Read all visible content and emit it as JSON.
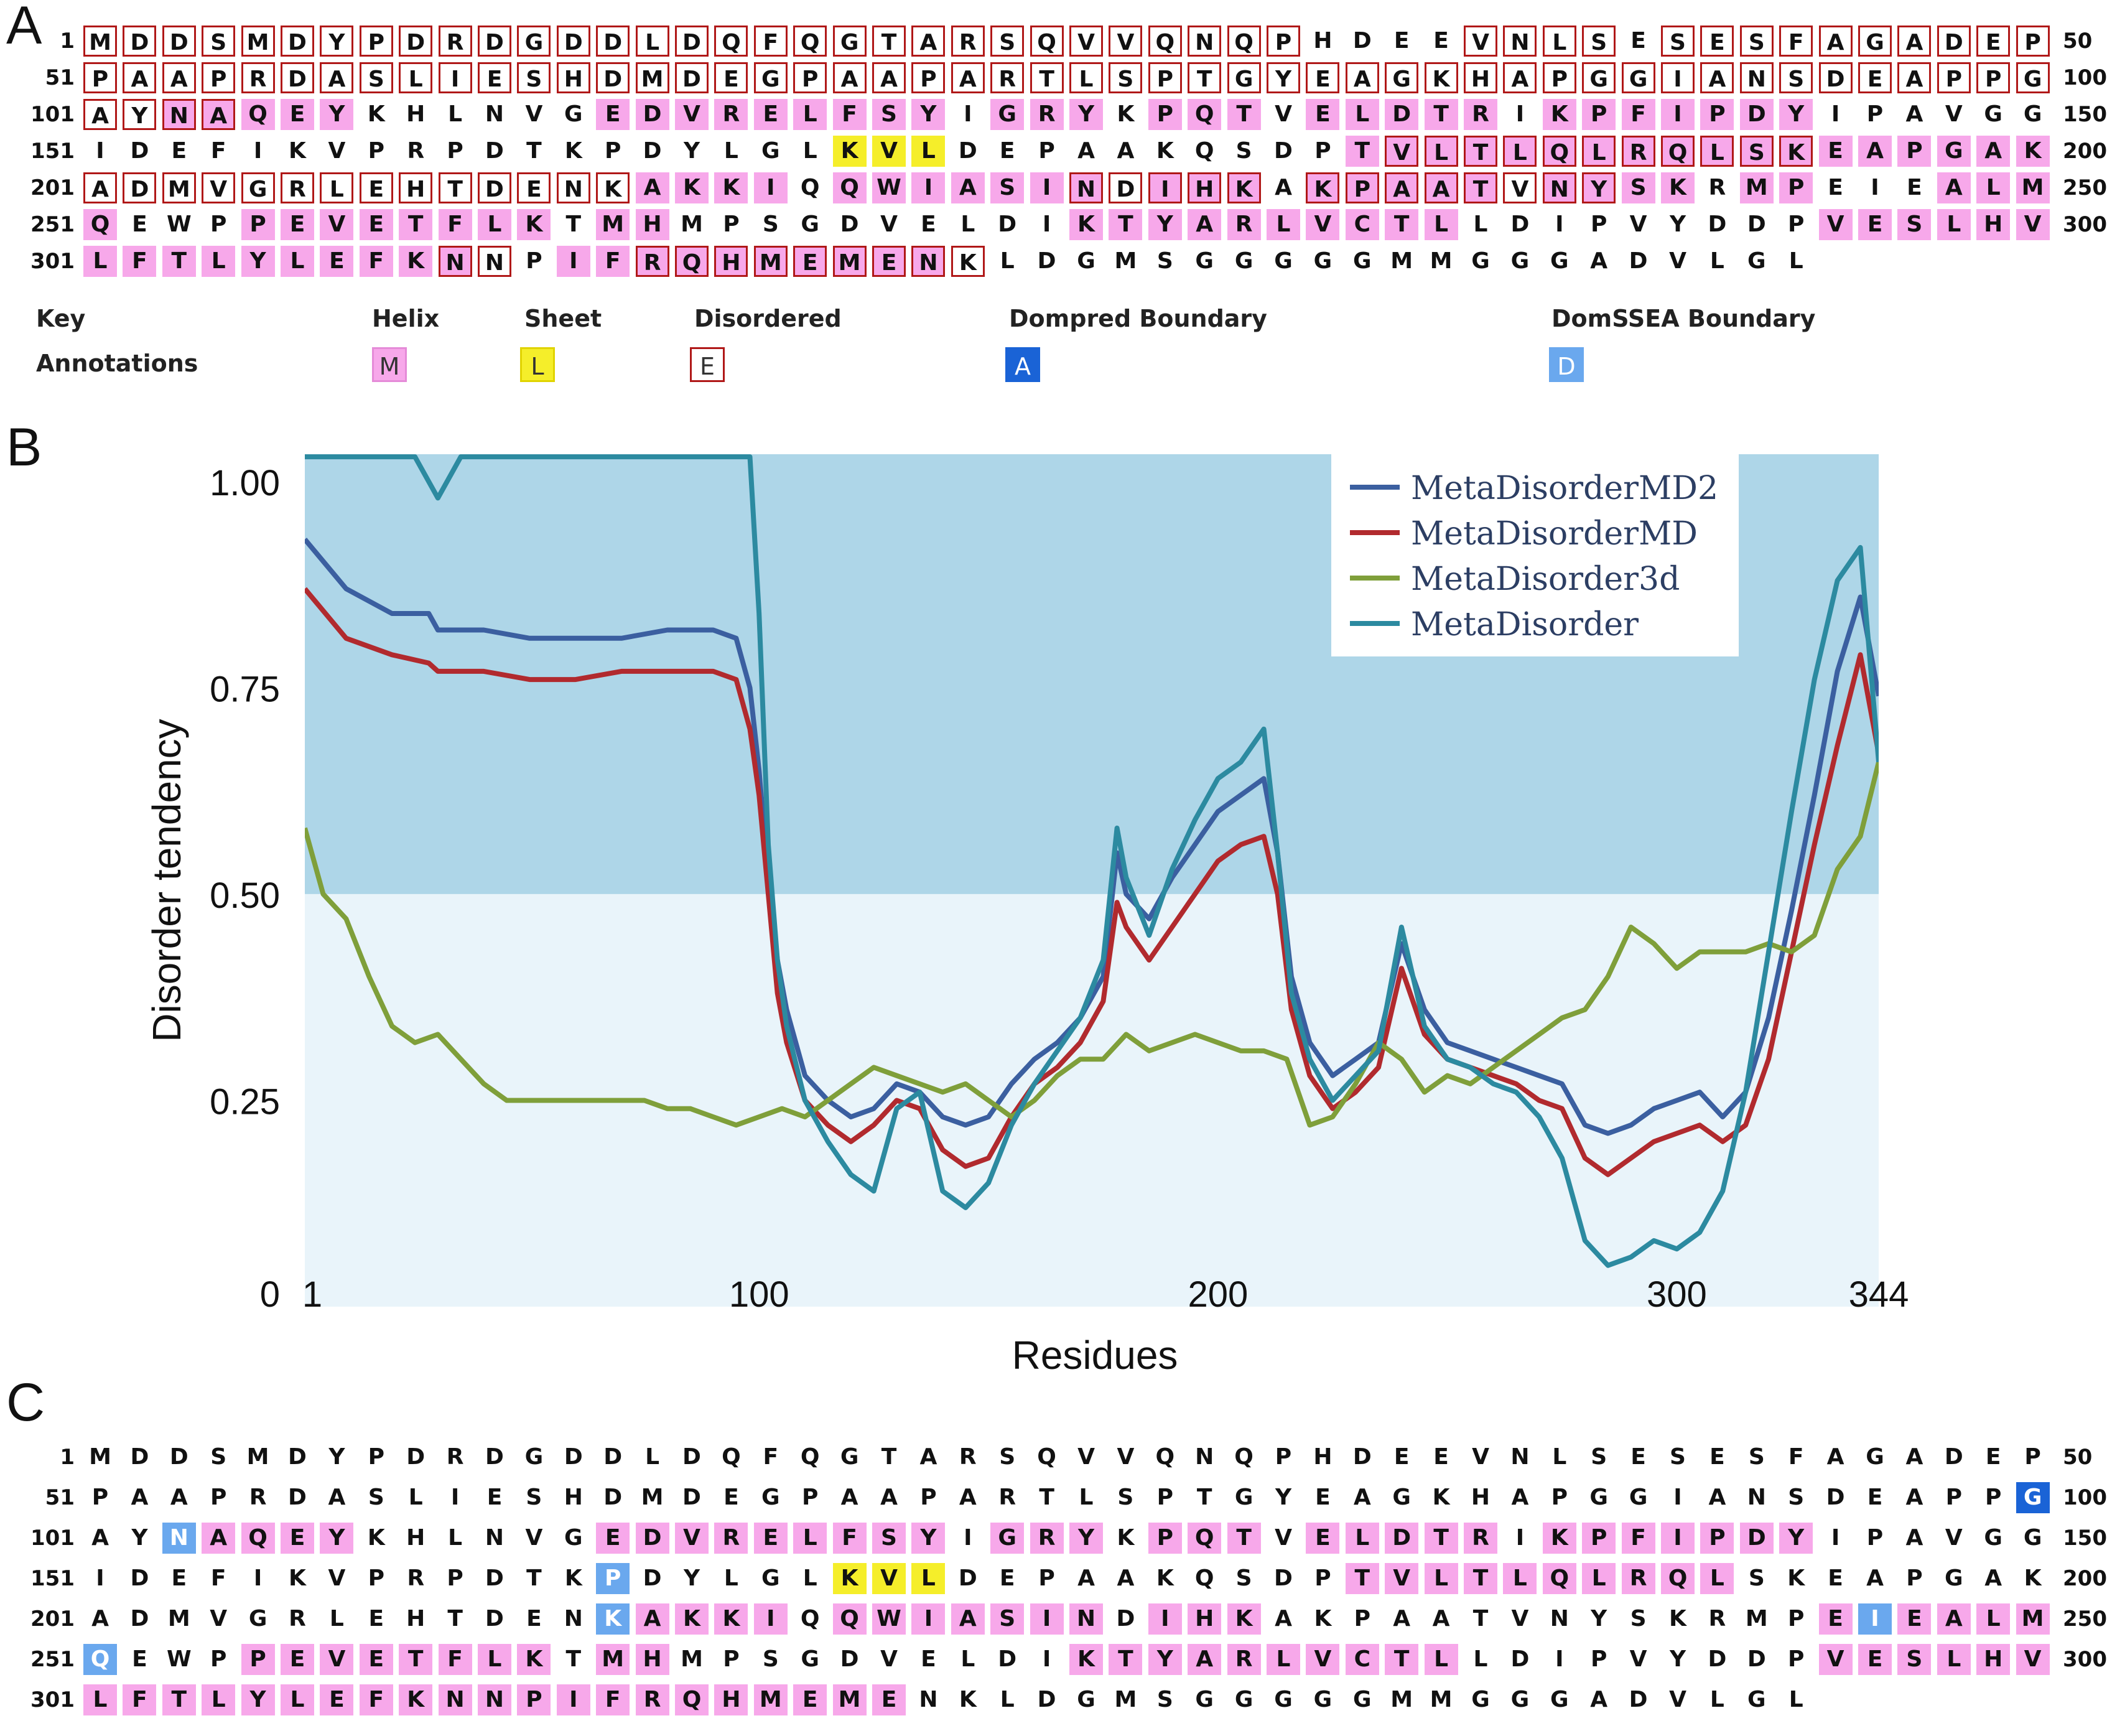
{
  "panel_labels": {
    "a": "A",
    "b": "B",
    "c": "C"
  },
  "sequence_rows": [
    {
      "start": "1",
      "end": "50",
      "seq": "MDDSMDYPDRDGDDLDQFQGTARSQVVQNQPHDEEVNLSESESFAGADEP"
    },
    {
      "start": "51",
      "end": "100",
      "seq": "PAAPRDASLIESHDMDEGPAAPARTLSPTGYEAGKHAPGGIANSDEAPPG"
    },
    {
      "start": "101",
      "end": "150",
      "seq": "AYNAQEYKHLNVGEDVRELFSYIGRYKPQTVELDTRIKPFIPDYIPAVGG"
    },
    {
      "start": "151",
      "end": "200",
      "seq": "IDEFIKVPRPDTKPDYLGLKVLDEPAAKQSDPTVLTLQLRQLSKEAPGAK"
    },
    {
      "start": "201",
      "end": "250",
      "seq": "ADMVGRLEHTDENKAKKIQQWIASINDIHKAKPAATVNYSKRMPEIEALM"
    },
    {
      "start": "251",
      "end": "300",
      "seq": "QEWPPEVETFLKTMHMPSGDVELDIKTYARLVCTLLDIPVYDDPVESLHV"
    },
    {
      "start": "301",
      "end": "",
      "seq": "LFTLYLEFKNNPIFRQHMEMENKLDGMSGGGGGMMGGGADVLGL"
    }
  ],
  "panel_a": {
    "helix": [
      "4",
      "15",
      "16",
      "17",
      "18",
      "20",
      "21",
      "22",
      "23",
      "25",
      "26",
      "27",
      "29",
      "31",
      "32",
      "33",
      "34",
      "35",
      "37",
      "38",
      "39",
      "40",
      "41",
      "42",
      "43",
      "44",
      "45",
      "46",
      "47",
      "48",
      "49",
      "50",
      "51",
      "52",
      "53",
      "54",
      "55",
      "56",
      "57",
      "58",
      "59",
      "60",
      "61",
      "62",
      "63",
      "64",
      "65",
      "66",
      "67",
      "68",
      "69",
      "70",
      "71",
      "72",
      "73",
      "74",
      "75",
      "76",
      "77",
      "78",
      "79",
      "80",
      "81",
      "82",
      "83",
      "84",
      "85",
      "86",
      "87",
      "88",
      "89",
      "90",
      "91",
      "92",
      "93",
      "94",
      "95",
      "96",
      "97",
      "98",
      "99",
      "100",
      "101",
      "102",
      "103",
      "104",
      "105",
      "106",
      "107",
      "114",
      "115",
      "116",
      "117",
      "118",
      "119",
      "120",
      "121",
      "122",
      "123",
      "124",
      "125",
      "126",
      "127",
      "128",
      "129",
      "130",
      "131",
      "132",
      "133",
      "134",
      "135",
      "136",
      "137",
      "138",
      "139",
      "140",
      "141",
      "142",
      "143",
      "144",
      "145",
      "146",
      "147",
      "148",
      "149",
      "150"
    ],
    "note": ""
  },
  "key": {
    "key_label": "Key",
    "annotations_label": "Annotations",
    "items": [
      {
        "title": "Helix",
        "glyph": "M",
        "bg": "#f7a8ea",
        "fg": "#333333",
        "border": "#e58bd8"
      },
      {
        "title": "Sheet",
        "glyph": "L",
        "bg": "#f5ee2a",
        "fg": "#333333",
        "border": "#e0d300"
      },
      {
        "title": "Disordered",
        "glyph": "E",
        "bg": "#ffffff",
        "fg": "#333333",
        "border": "#b01818"
      },
      {
        "title": "Dompred Boundary",
        "glyph": "A",
        "bg": "#1a63d6",
        "fg": "#ffffff",
        "border": "#1a63d6"
      },
      {
        "title": "DomSSEA Boundary",
        "glyph": "D",
        "bg": "#6aa8ee",
        "fg": "#ffffff",
        "border": "#6aa8ee"
      }
    ]
  },
  "chart_data": {
    "type": "line",
    "title": "",
    "xlabel": "Residues",
    "ylabel": "Disorder tendency",
    "xlim": [
      1,
      344
    ],
    "ylim": [
      0,
      1.03
    ],
    "x_ticks": [
      "1",
      "100",
      "200",
      "300",
      "344"
    ],
    "y_ticks": [
      "0",
      "0.25",
      "0.50",
      "0.75",
      "1.00"
    ],
    "threshold": 0.5,
    "background_upper": "#aed6e8",
    "background_lower": "#e9f4fa",
    "legend_position": "top-right",
    "series": [
      {
        "name": "MetaDisorderMD2",
        "color": "#3b5fa0",
        "x": [
          1,
          10,
          20,
          28,
          30,
          40,
          50,
          60,
          70,
          80,
          90,
          95,
          98,
          100,
          102,
          104,
          106,
          110,
          115,
          120,
          125,
          130,
          135,
          140,
          145,
          150,
          155,
          160,
          165,
          170,
          175,
          178,
          180,
          185,
          190,
          195,
          200,
          205,
          210,
          213,
          216,
          220,
          225,
          230,
          235,
          240,
          245,
          250,
          255,
          260,
          265,
          270,
          275,
          280,
          285,
          290,
          295,
          300,
          305,
          310,
          315,
          320,
          325,
          330,
          335,
          340,
          344
        ],
        "y": [
          0.93,
          0.87,
          0.84,
          0.84,
          0.82,
          0.82,
          0.81,
          0.81,
          0.81,
          0.82,
          0.82,
          0.81,
          0.75,
          0.65,
          0.52,
          0.42,
          0.36,
          0.28,
          0.25,
          0.23,
          0.24,
          0.27,
          0.26,
          0.23,
          0.22,
          0.23,
          0.27,
          0.3,
          0.32,
          0.35,
          0.4,
          0.55,
          0.5,
          0.47,
          0.52,
          0.56,
          0.6,
          0.62,
          0.64,
          0.55,
          0.4,
          0.32,
          0.28,
          0.3,
          0.32,
          0.44,
          0.36,
          0.32,
          0.31,
          0.3,
          0.29,
          0.28,
          0.27,
          0.22,
          0.21,
          0.22,
          0.24,
          0.25,
          0.26,
          0.23,
          0.26,
          0.35,
          0.48,
          0.62,
          0.77,
          0.86,
          0.74
        ]
      },
      {
        "name": "MetaDisorderMD",
        "color": "#b12a2e",
        "x": [
          1,
          10,
          20,
          28,
          30,
          40,
          50,
          60,
          70,
          80,
          90,
          95,
          98,
          100,
          102,
          104,
          106,
          110,
          115,
          120,
          125,
          130,
          135,
          140,
          145,
          150,
          155,
          160,
          165,
          170,
          175,
          178,
          180,
          185,
          190,
          195,
          200,
          205,
          210,
          213,
          216,
          220,
          225,
          230,
          235,
          240,
          245,
          250,
          255,
          260,
          265,
          270,
          275,
          280,
          285,
          290,
          295,
          300,
          305,
          310,
          315,
          320,
          325,
          330,
          335,
          340,
          344
        ],
        "y": [
          0.87,
          0.81,
          0.79,
          0.78,
          0.77,
          0.77,
          0.76,
          0.76,
          0.77,
          0.77,
          0.77,
          0.76,
          0.7,
          0.62,
          0.5,
          0.38,
          0.32,
          0.25,
          0.22,
          0.2,
          0.22,
          0.25,
          0.24,
          0.19,
          0.17,
          0.18,
          0.23,
          0.27,
          0.29,
          0.32,
          0.37,
          0.49,
          0.46,
          0.42,
          0.46,
          0.5,
          0.54,
          0.56,
          0.57,
          0.5,
          0.36,
          0.28,
          0.24,
          0.26,
          0.29,
          0.41,
          0.33,
          0.3,
          0.29,
          0.28,
          0.27,
          0.25,
          0.24,
          0.18,
          0.16,
          0.18,
          0.2,
          0.21,
          0.22,
          0.2,
          0.22,
          0.3,
          0.43,
          0.56,
          0.68,
          0.79,
          0.67
        ]
      },
      {
        "name": "MetaDisorder3d",
        "color": "#7f9f3a",
        "x": [
          1,
          5,
          10,
          15,
          20,
          25,
          30,
          35,
          40,
          45,
          50,
          55,
          60,
          65,
          70,
          75,
          80,
          85,
          90,
          95,
          100,
          105,
          110,
          115,
          120,
          125,
          130,
          135,
          140,
          145,
          150,
          155,
          160,
          165,
          170,
          175,
          180,
          185,
          190,
          195,
          200,
          205,
          210,
          215,
          220,
          225,
          230,
          235,
          240,
          245,
          250,
          255,
          260,
          265,
          270,
          275,
          280,
          285,
          290,
          295,
          300,
          305,
          310,
          315,
          320,
          325,
          330,
          335,
          340,
          344
        ],
        "y": [
          0.58,
          0.5,
          0.47,
          0.4,
          0.34,
          0.32,
          0.33,
          0.3,
          0.27,
          0.25,
          0.25,
          0.25,
          0.25,
          0.25,
          0.25,
          0.25,
          0.24,
          0.24,
          0.23,
          0.22,
          0.23,
          0.24,
          0.23,
          0.25,
          0.27,
          0.29,
          0.28,
          0.27,
          0.26,
          0.27,
          0.25,
          0.23,
          0.25,
          0.28,
          0.3,
          0.3,
          0.33,
          0.31,
          0.32,
          0.33,
          0.32,
          0.31,
          0.31,
          0.3,
          0.22,
          0.23,
          0.27,
          0.32,
          0.3,
          0.26,
          0.28,
          0.27,
          0.29,
          0.31,
          0.33,
          0.35,
          0.36,
          0.4,
          0.46,
          0.44,
          0.41,
          0.43,
          0.43,
          0.43,
          0.44,
          0.43,
          0.45,
          0.53,
          0.57,
          0.66
        ]
      },
      {
        "name": "MetaDisorder",
        "color": "#2c8aa0",
        "x": [
          1,
          5,
          10,
          15,
          20,
          25,
          30,
          35,
          40,
          50,
          60,
          70,
          80,
          90,
          95,
          98,
          100,
          102,
          104,
          106,
          110,
          115,
          120,
          125,
          130,
          135,
          140,
          145,
          150,
          155,
          160,
          165,
          170,
          175,
          178,
          180,
          185,
          190,
          195,
          200,
          205,
          210,
          213,
          216,
          220,
          225,
          230,
          235,
          240,
          245,
          250,
          255,
          260,
          265,
          270,
          275,
          280,
          285,
          290,
          295,
          300,
          305,
          310,
          315,
          320,
          325,
          330,
          335,
          340,
          344
        ],
        "y": [
          1.03,
          1.03,
          1.03,
          1.03,
          1.03,
          1.03,
          0.98,
          1.03,
          1.03,
          1.03,
          1.03,
          1.03,
          1.03,
          1.03,
          1.03,
          1.03,
          0.84,
          0.56,
          0.42,
          0.34,
          0.25,
          0.2,
          0.16,
          0.14,
          0.24,
          0.26,
          0.14,
          0.12,
          0.15,
          0.22,
          0.27,
          0.31,
          0.35,
          0.42,
          0.58,
          0.52,
          0.45,
          0.53,
          0.59,
          0.64,
          0.66,
          0.7,
          0.55,
          0.38,
          0.3,
          0.25,
          0.28,
          0.31,
          0.46,
          0.34,
          0.3,
          0.29,
          0.27,
          0.26,
          0.23,
          0.18,
          0.08,
          0.05,
          0.06,
          0.08,
          0.07,
          0.09,
          0.14,
          0.26,
          0.43,
          0.6,
          0.76,
          0.88,
          0.92,
          0.66
        ]
      }
    ]
  },
  "panel_c": {
    "note": ""
  }
}
